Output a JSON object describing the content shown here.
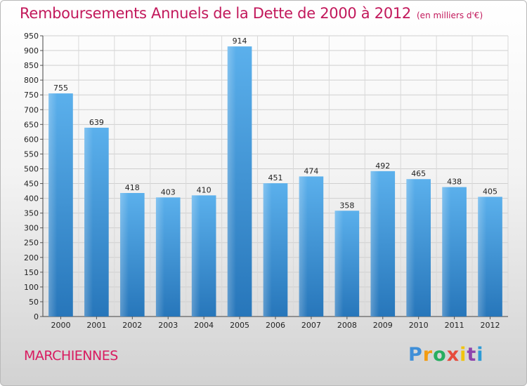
{
  "title": "Remboursements Annuels de la Dette de 2000 à 2012",
  "unit": "(en milliers d'€)",
  "city": "MARCHIENNES",
  "logo": {
    "letters": [
      "P",
      "r",
      "o",
      "x",
      "i",
      "t",
      "i"
    ],
    "colors": [
      "#3f8fd8",
      "#f39c12",
      "#27ae60",
      "#e74c3c",
      "#f1c40f",
      "#8e44ad",
      "#2e9bd6"
    ]
  },
  "chart_data": {
    "type": "bar",
    "title": "Remboursements Annuels de la Dette de 2000 à 2012",
    "categories": [
      "2000",
      "2001",
      "2002",
      "2003",
      "2004",
      "2005",
      "2006",
      "2007",
      "2008",
      "2009",
      "2010",
      "2011",
      "2012"
    ],
    "values": [
      755,
      639,
      418,
      403,
      410,
      914,
      451,
      474,
      358,
      492,
      465,
      438,
      405
    ],
    "ylim": [
      0,
      950
    ],
    "ytick_step": 50,
    "grid": true,
    "bar_color": "#3f97dd"
  }
}
